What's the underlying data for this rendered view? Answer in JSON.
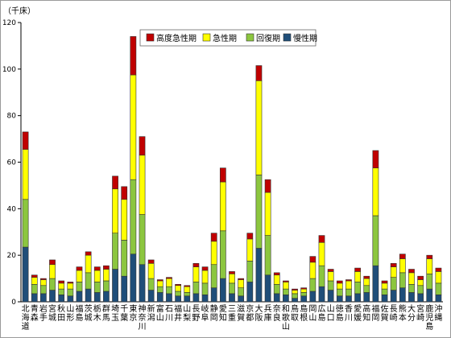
{
  "chart_data": {
    "type": "bar",
    "stacked": true,
    "unit_label": "（千床）",
    "ylim": [
      0,
      120
    ],
    "yticks": [
      0,
      20,
      40,
      60,
      80,
      100,
      120
    ],
    "grid": false,
    "legend_position": "top-right",
    "categories": [
      "北海道",
      "青森",
      "岩手",
      "宮城",
      "秋田",
      "山形",
      "福島",
      "茨城",
      "栃木",
      "群馬",
      "埼玉",
      "千葉",
      "東京",
      "神奈川",
      "新潟",
      "富山",
      "石川",
      "福井",
      "山梨",
      "長野",
      "岐阜",
      "静岡",
      "愛知",
      "三重",
      "滋賀",
      "京都",
      "大阪",
      "兵庫",
      "奈良",
      "和歌山",
      "鳥取",
      "島根",
      "岡山",
      "広島",
      "山口",
      "徳島",
      "香川",
      "愛媛",
      "高知",
      "福岡",
      "佐賀",
      "長崎",
      "熊本",
      "大分",
      "宮崎",
      "鹿児島",
      "沖縄"
    ],
    "series": [
      {
        "name": "慢性期",
        "color": "#1f4e79",
        "values": [
          23.5,
          3.5,
          3.5,
          5.0,
          3.0,
          2.5,
          4.5,
          5.5,
          4.0,
          4.5,
          14.0,
          11.0,
          20.5,
          16.0,
          5.0,
          4.0,
          3.5,
          2.5,
          2.5,
          3.5,
          3.0,
          6.0,
          10.0,
          3.5,
          2.5,
          8.5,
          23.0,
          11.5,
          3.5,
          3.0,
          1.5,
          2.5,
          4.5,
          6.5,
          5.0,
          2.5,
          2.5,
          3.5,
          4.0,
          15.5,
          3.0,
          5.0,
          6.0,
          4.0,
          3.5,
          5.5,
          3.0
        ]
      },
      {
        "name": "回復期",
        "color": "#8cc63f",
        "values": [
          20.5,
          4.0,
          3.5,
          5.0,
          2.5,
          3.0,
          4.0,
          7.0,
          4.5,
          4.5,
          15.5,
          15.5,
          32.0,
          21.5,
          5.0,
          2.5,
          3.0,
          2.0,
          1.5,
          5.0,
          5.0,
          10.0,
          20.5,
          4.5,
          3.5,
          9.0,
          31.5,
          17.0,
          4.0,
          2.5,
          2.0,
          1.5,
          5.5,
          9.0,
          4.0,
          3.0,
          3.0,
          5.0,
          3.0,
          21.5,
          2.5,
          5.5,
          6.5,
          3.5,
          3.5,
          6.5,
          5.0
        ]
      },
      {
        "name": "急性期",
        "color": "#ffff00",
        "values": [
          21.5,
          3.0,
          2.5,
          6.0,
          2.5,
          2.5,
          5.0,
          7.5,
          5.0,
          5.0,
          19.0,
          17.5,
          45.0,
          25.5,
          6.5,
          2.5,
          3.5,
          2.5,
          2.5,
          6.5,
          5.5,
          10.0,
          21.0,
          4.0,
          3.5,
          9.5,
          40.5,
          18.5,
          4.0,
          3.0,
          1.5,
          1.5,
          7.0,
          10.0,
          4.0,
          2.5,
          3.5,
          4.5,
          3.0,
          20.5,
          2.5,
          4.5,
          6.0,
          5.0,
          2.5,
          6.5,
          5.0
        ]
      },
      {
        "name": "高度急性期",
        "color": "#c00000",
        "values": [
          7.5,
          1.0,
          0.5,
          2.0,
          1.0,
          0.5,
          1.5,
          1.5,
          1.5,
          1.5,
          5.5,
          5.5,
          16.5,
          8.0,
          1.5,
          0.5,
          0.5,
          0.5,
          0.5,
          1.5,
          1.5,
          3.5,
          6.0,
          1.0,
          0.5,
          2.5,
          6.5,
          5.5,
          1.0,
          0.5,
          0.5,
          0.5,
          2.5,
          3.0,
          1.0,
          1.0,
          0.5,
          1.5,
          1.0,
          7.5,
          1.0,
          1.5,
          2.0,
          1.5,
          1.5,
          1.5,
          1.5
        ]
      }
    ],
    "legend_order": [
      "高度急性期",
      "急性期",
      "回復期",
      "慢性期"
    ]
  }
}
